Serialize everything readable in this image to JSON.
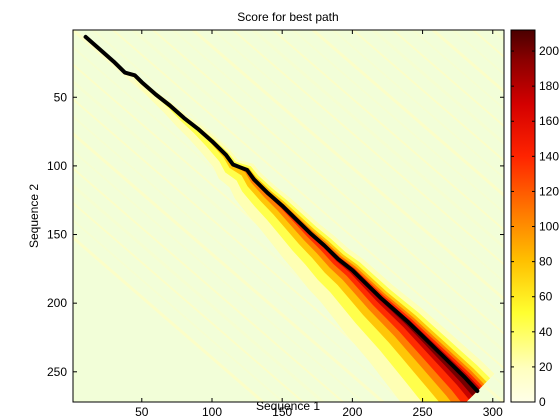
{
  "chart_data": {
    "type": "heatmap",
    "title": "Score for best path",
    "xlabel": "Sequence 1",
    "ylabel": "Sequence 2",
    "xlim": [
      1,
      308
    ],
    "ylim": [
      1,
      272
    ],
    "y_direction": "reversed",
    "x_ticks": [
      50,
      100,
      150,
      200,
      250,
      300
    ],
    "y_ticks": [
      50,
      100,
      150,
      200,
      250
    ],
    "colorbar": {
      "colormap": "hot-reversed",
      "range": [
        0,
        212
      ],
      "ticks": [
        0,
        20,
        40,
        60,
        80,
        100,
        120,
        140,
        160,
        180,
        200
      ]
    },
    "series": [
      {
        "type": "line",
        "color": "#000000",
        "x": [
          10,
          20,
          30,
          38,
          45,
          50,
          60,
          70,
          80,
          90,
          100,
          110,
          115,
          120,
          125,
          130,
          140,
          150,
          160,
          170,
          180,
          190,
          200,
          210,
          220,
          230,
          240,
          250,
          260,
          270,
          280,
          289
        ],
        "y": [
          6,
          15,
          24,
          32,
          34,
          39,
          48,
          56,
          65,
          73,
          82,
          92,
          99,
          101,
          103,
          110,
          120,
          129,
          139,
          149,
          158,
          168,
          176,
          186,
          196,
          205,
          214,
          224,
          234,
          244,
          254,
          264
        ]
      }
    ]
  }
}
